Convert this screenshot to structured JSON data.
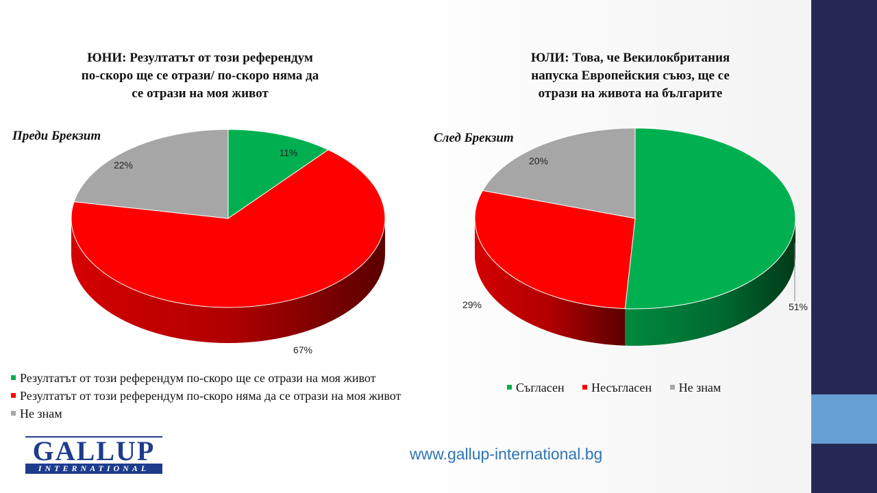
{
  "chart_data": [
    {
      "type": "pie",
      "title": "ЮНИ: Резултатът  от този референдум по-скоро ще се отрази/ по-скоро няма да се отрази на моя живот",
      "title_lines": [
        "ЮНИ: Резултатът  от този референдум",
        "по-скоро ще се отрази/ по-скоро няма да",
        "се отрази на моя живот"
      ],
      "subtitle": "Преди Брекзит",
      "slices": [
        {
          "label": "Резултатът  от този референдум  по-скоро ще се отрази на моя живот",
          "value": 11,
          "value_label": "11%",
          "color": "#00b050"
        },
        {
          "label": "Резултатът  от този референдум  по-скоро няма да се отрази на моя живот",
          "value": 67,
          "value_label": "67%",
          "color": "#ff0000"
        },
        {
          "label": "Не знам",
          "value": 22,
          "value_label": "22%",
          "color": "#a6a6a6"
        }
      ],
      "legend_position": "bottom"
    },
    {
      "type": "pie",
      "title": "ЮЛИ: Това, че Векилокбритания напуска Европейския съюз, ще се отрази на живота на българите",
      "title_lines": [
        "ЮЛИ: Това, че Векилокбритания",
        "напуска Европейския съюз, ще се",
        "отрази на живота на българите"
      ],
      "subtitle": "След Брекзит",
      "slices": [
        {
          "label": "Съгласен",
          "value": 51,
          "value_label": "51%",
          "color": "#00b050"
        },
        {
          "label": "Несъгласен",
          "value": 29,
          "value_label": "29%",
          "color": "#ff0000"
        },
        {
          "label": "Не знам",
          "value": 20,
          "value_label": "20%",
          "color": "#a6a6a6"
        }
      ],
      "legend_position": "bottom"
    }
  ],
  "logo": {
    "main": "GALLUP",
    "band": "INTERNATIONAL"
  },
  "website": "www.gallup-international.bg"
}
